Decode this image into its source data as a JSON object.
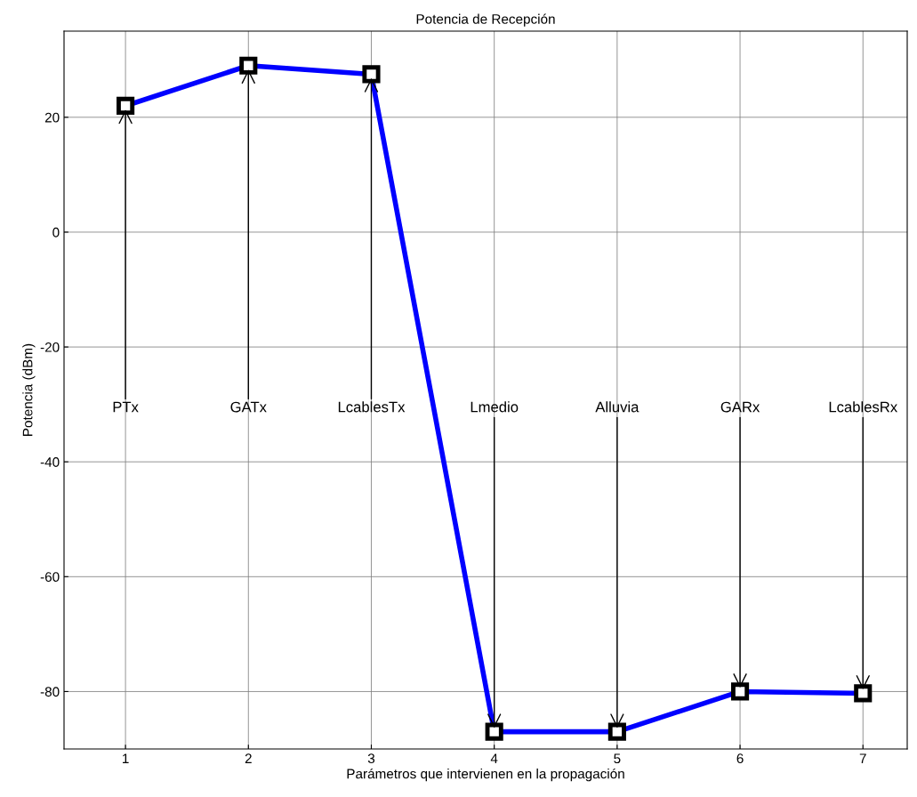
{
  "chart_data": {
    "type": "line",
    "title": "Potencia de Recepción",
    "xlabel": "Parámetros que intervienen en la propagación",
    "ylabel": "Potencia (dBm)",
    "x": [
      1,
      2,
      3,
      4,
      5,
      6,
      7
    ],
    "series": [
      {
        "color": "#0000ff",
        "values": [
          22,
          29,
          27.5,
          -87,
          -87,
          -80,
          -80.3
        ]
      }
    ],
    "xlim": [
      0.5,
      7.36
    ],
    "ylim": [
      -90,
      35
    ],
    "xticks": [
      1,
      2,
      3,
      4,
      5,
      6,
      7
    ],
    "yticks": [
      -80,
      -60,
      -40,
      -20,
      0,
      20
    ],
    "grid": true,
    "marker": "square",
    "line_style": "solid",
    "annotations": [
      {
        "text": "PTx",
        "x": 1,
        "y": 22
      },
      {
        "text": "GATx",
        "x": 2,
        "y": 29
      },
      {
        "text": "LcablesTx",
        "x": 3,
        "y": 27.5
      },
      {
        "text": "Lmedio",
        "x": 4,
        "y": -87
      },
      {
        "text": "Alluvia",
        "x": 5,
        "y": -87
      },
      {
        "text": "GARx",
        "x": 6,
        "y": -80
      },
      {
        "text": "LcablesRx",
        "x": 7,
        "y": -80.3
      }
    ]
  }
}
